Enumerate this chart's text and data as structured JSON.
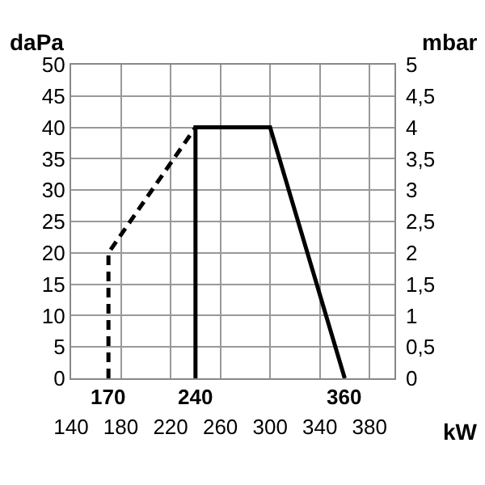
{
  "chart_data": {
    "type": "line",
    "xlabel": "kW",
    "ylabel": "daPa",
    "y2label": "mbar",
    "series": [
      {
        "color": "#000000",
        "line_style": "dashed",
        "x": [
          170,
          170,
          240
        ],
        "values": [
          0,
          20,
          40
        ]
      },
      {
        "color": "#000000",
        "line_style": "solid",
        "x": [
          240,
          240,
          300,
          360
        ],
        "values": [
          0,
          40,
          40,
          0
        ]
      }
    ],
    "xlim": [
      140,
      400
    ],
    "xticks": [
      140,
      180,
      220,
      260,
      300,
      340,
      380
    ],
    "ylim": [
      0,
      50
    ],
    "yticks": [
      0,
      5,
      10,
      15,
      20,
      25,
      30,
      35,
      40,
      45,
      50
    ],
    "y2lim": [
      0,
      5
    ],
    "y2ticks": [
      0,
      {
        "value": 0.5,
        "label": "0,5"
      },
      1,
      {
        "value": 1.5,
        "label": "1,5"
      },
      2,
      {
        "value": 2.5,
        "label": "2,5"
      },
      3,
      {
        "value": 3.5,
        "label": "3,5"
      },
      4,
      {
        "value": 4.5,
        "label": "4,5"
      },
      5
    ],
    "annotations": [
      {
        "text": "170",
        "x": 170,
        "y": 0
      },
      {
        "text": "240",
        "x": 240,
        "y": 0
      },
      {
        "text": "360",
        "x": 360,
        "y": 0
      }
    ],
    "grid": true,
    "marker": "none"
  }
}
